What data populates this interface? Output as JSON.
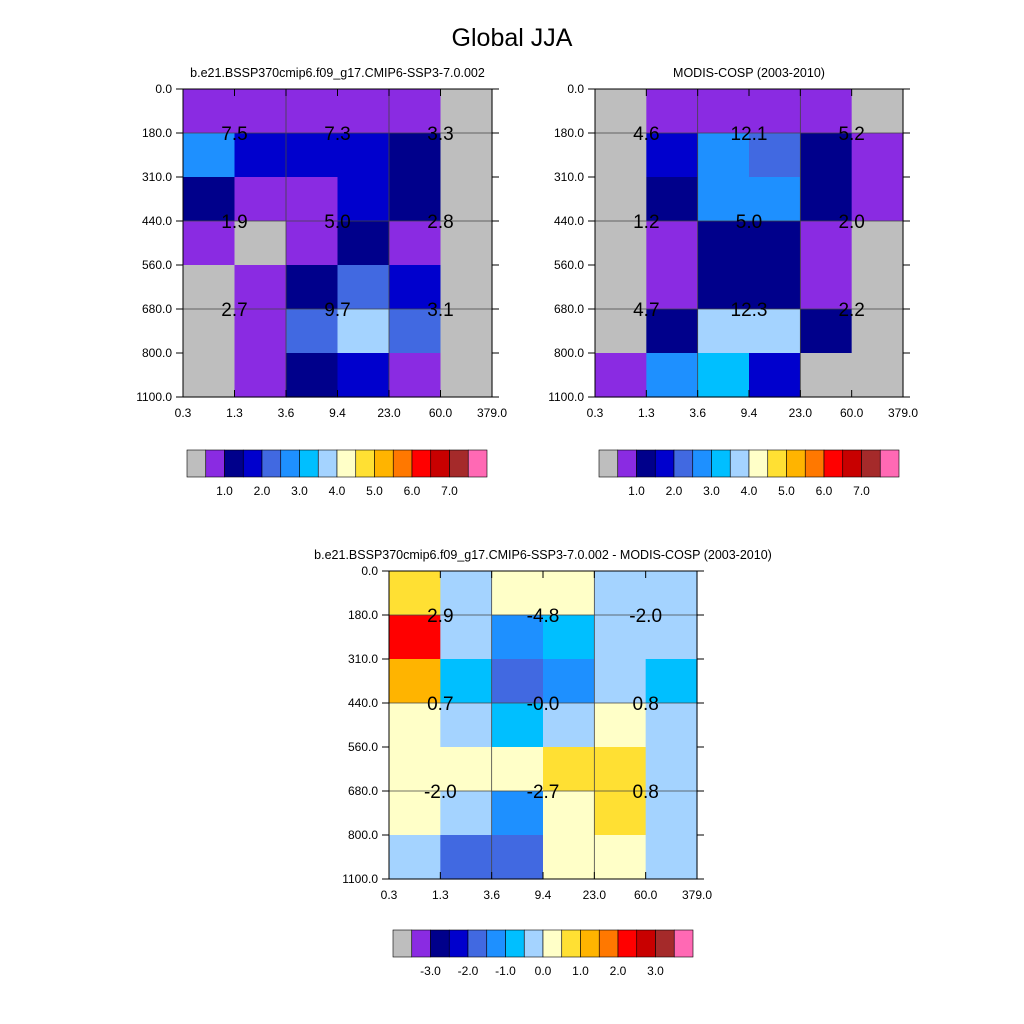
{
  "figure_title": "Global JJA",
  "x_tick_labels": [
    "0.3",
    "1.3",
    "3.6",
    "9.4",
    "23.0",
    "60.0",
    "379.0"
  ],
  "y_tick_labels": [
    "0.0",
    "180.0",
    "310.0",
    "440.0",
    "560.0",
    "680.0",
    "800.0",
    "1100.0"
  ],
  "chart_data": [
    {
      "type": "heatmap",
      "title": "b.e21.BSSP370cmip6.f09_g17.CMIP6-SSP3-7.0.002",
      "colorbar": {
        "colors": [
          "#bebebe",
          "#8a2be2",
          "#00008b",
          "#0000cd",
          "#4169e1",
          "#1e90ff",
          "#00bfff",
          "#a4d3ff",
          "#ffffc8",
          "#ffe033",
          "#ffb400",
          "#ff7800",
          "#ff0000",
          "#c80000",
          "#a52a2a",
          "#ff69b4"
        ],
        "labels": [
          "1.0",
          "2.0",
          "3.0",
          "4.0",
          "5.0",
          "6.0",
          "7.0"
        ]
      },
      "cells": [
        [
          "#8a2be2",
          "#8a2be2",
          "#8a2be2",
          "#8a2be2",
          "#8a2be2",
          "#bebebe"
        ],
        [
          "#1e90ff",
          "#0000cd",
          "#0000cd",
          "#0000cd",
          "#00008b",
          "#bebebe"
        ],
        [
          "#00008b",
          "#8a2be2",
          "#8a2be2",
          "#0000cd",
          "#00008b",
          "#bebebe"
        ],
        [
          "#8a2be2",
          "#bebebe",
          "#8a2be2",
          "#00008b",
          "#8a2be2",
          "#bebebe"
        ],
        [
          "#bebebe",
          "#8a2be2",
          "#00008b",
          "#4169e1",
          "#0000cd",
          "#bebebe"
        ],
        [
          "#bebebe",
          "#8a2be2",
          "#4169e1",
          "#a4d3ff",
          "#4169e1",
          "#bebebe"
        ],
        [
          "#bebebe",
          "#8a2be2",
          "#00008b",
          "#0000cd",
          "#8a2be2",
          "#bebebe"
        ]
      ],
      "annotations": [
        {
          "col": 0,
          "row": 0,
          "value": "7.5"
        },
        {
          "col": 1,
          "row": 0,
          "value": "7.3"
        },
        {
          "col": 2,
          "row": 0,
          "value": "3.3"
        },
        {
          "col": 0,
          "row": 1,
          "value": "1.9"
        },
        {
          "col": 1,
          "row": 1,
          "value": "5.0"
        },
        {
          "col": 2,
          "row": 1,
          "value": "2.8"
        },
        {
          "col": 0,
          "row": 2,
          "value": "2.7"
        },
        {
          "col": 1,
          "row": 2,
          "value": "9.7"
        },
        {
          "col": 2,
          "row": 2,
          "value": "3.1"
        }
      ]
    },
    {
      "type": "heatmap",
      "title": "MODIS-COSP (2003-2010)",
      "colorbar": {
        "colors": [
          "#bebebe",
          "#8a2be2",
          "#00008b",
          "#0000cd",
          "#4169e1",
          "#1e90ff",
          "#00bfff",
          "#a4d3ff",
          "#ffffc8",
          "#ffe033",
          "#ffb400",
          "#ff7800",
          "#ff0000",
          "#c80000",
          "#a52a2a",
          "#ff69b4"
        ],
        "labels": [
          "1.0",
          "2.0",
          "3.0",
          "4.0",
          "5.0",
          "6.0",
          "7.0"
        ]
      },
      "cells": [
        [
          "#bebebe",
          "#8a2be2",
          "#8a2be2",
          "#8a2be2",
          "#8a2be2",
          "#bebebe"
        ],
        [
          "#bebebe",
          "#0000cd",
          "#1e90ff",
          "#4169e1",
          "#00008b",
          "#8a2be2"
        ],
        [
          "#bebebe",
          "#00008b",
          "#1e90ff",
          "#1e90ff",
          "#00008b",
          "#8a2be2"
        ],
        [
          "#bebebe",
          "#8a2be2",
          "#00008b",
          "#00008b",
          "#8a2be2",
          "#bebebe"
        ],
        [
          "#bebebe",
          "#8a2be2",
          "#00008b",
          "#00008b",
          "#8a2be2",
          "#bebebe"
        ],
        [
          "#bebebe",
          "#00008b",
          "#a4d3ff",
          "#a4d3ff",
          "#00008b",
          "#bebebe"
        ],
        [
          "#8a2be2",
          "#1e90ff",
          "#00bfff",
          "#0000cd",
          "#bebebe",
          "#bebebe"
        ]
      ],
      "annotations": [
        {
          "col": 0,
          "row": 0,
          "value": "4.6"
        },
        {
          "col": 1,
          "row": 0,
          "value": "12.1"
        },
        {
          "col": 2,
          "row": 0,
          "value": "5.2"
        },
        {
          "col": 0,
          "row": 1,
          "value": "1.2"
        },
        {
          "col": 1,
          "row": 1,
          "value": "5.0"
        },
        {
          "col": 2,
          "row": 1,
          "value": "2.0"
        },
        {
          "col": 0,
          "row": 2,
          "value": "4.7"
        },
        {
          "col": 1,
          "row": 2,
          "value": "12.3"
        },
        {
          "col": 2,
          "row": 2,
          "value": "2.2"
        }
      ]
    },
    {
      "type": "heatmap",
      "title": "b.e21.BSSP370cmip6.f09_g17.CMIP6-SSP3-7.0.002 - MODIS-COSP (2003-2010)",
      "colorbar": {
        "colors": [
          "#bebebe",
          "#8a2be2",
          "#00008b",
          "#0000cd",
          "#4169e1",
          "#1e90ff",
          "#00bfff",
          "#a4d3ff",
          "#ffffc8",
          "#ffe033",
          "#ffb400",
          "#ff7800",
          "#ff0000",
          "#c80000",
          "#a52a2a",
          "#ff69b4"
        ],
        "labels": [
          "-3.0",
          "-2.0",
          "-1.0",
          "0.0",
          "1.0",
          "2.0",
          "3.0"
        ]
      },
      "cells": [
        [
          "#ffe033",
          "#a4d3ff",
          "#ffffc8",
          "#ffffc8",
          "#a4d3ff",
          "#a4d3ff"
        ],
        [
          "#ff0000",
          "#a4d3ff",
          "#1e90ff",
          "#00bfff",
          "#a4d3ff",
          "#a4d3ff"
        ],
        [
          "#ffb400",
          "#00bfff",
          "#4169e1",
          "#1e90ff",
          "#a4d3ff",
          "#00bfff"
        ],
        [
          "#ffffc8",
          "#a4d3ff",
          "#00bfff",
          "#a4d3ff",
          "#ffffc8",
          "#a4d3ff"
        ],
        [
          "#ffffc8",
          "#ffffc8",
          "#ffffc8",
          "#ffe033",
          "#ffe033",
          "#a4d3ff"
        ],
        [
          "#ffffc8",
          "#a4d3ff",
          "#1e90ff",
          "#ffffc8",
          "#ffe033",
          "#a4d3ff"
        ],
        [
          "#a4d3ff",
          "#4169e1",
          "#4169e1",
          "#ffffc8",
          "#ffffc8",
          "#a4d3ff"
        ]
      ],
      "annotations": [
        {
          "col": 0,
          "row": 0,
          "value": "2.9"
        },
        {
          "col": 1,
          "row": 0,
          "value": "-4.8"
        },
        {
          "col": 2,
          "row": 0,
          "value": "-2.0"
        },
        {
          "col": 0,
          "row": 1,
          "value": "0.7"
        },
        {
          "col": 1,
          "row": 1,
          "value": "-0.0"
        },
        {
          "col": 2,
          "row": 1,
          "value": "0.8"
        },
        {
          "col": 0,
          "row": 2,
          "value": "-2.0"
        },
        {
          "col": 1,
          "row": 2,
          "value": "-2.7"
        },
        {
          "col": 2,
          "row": 2,
          "value": "0.8"
        }
      ]
    }
  ]
}
